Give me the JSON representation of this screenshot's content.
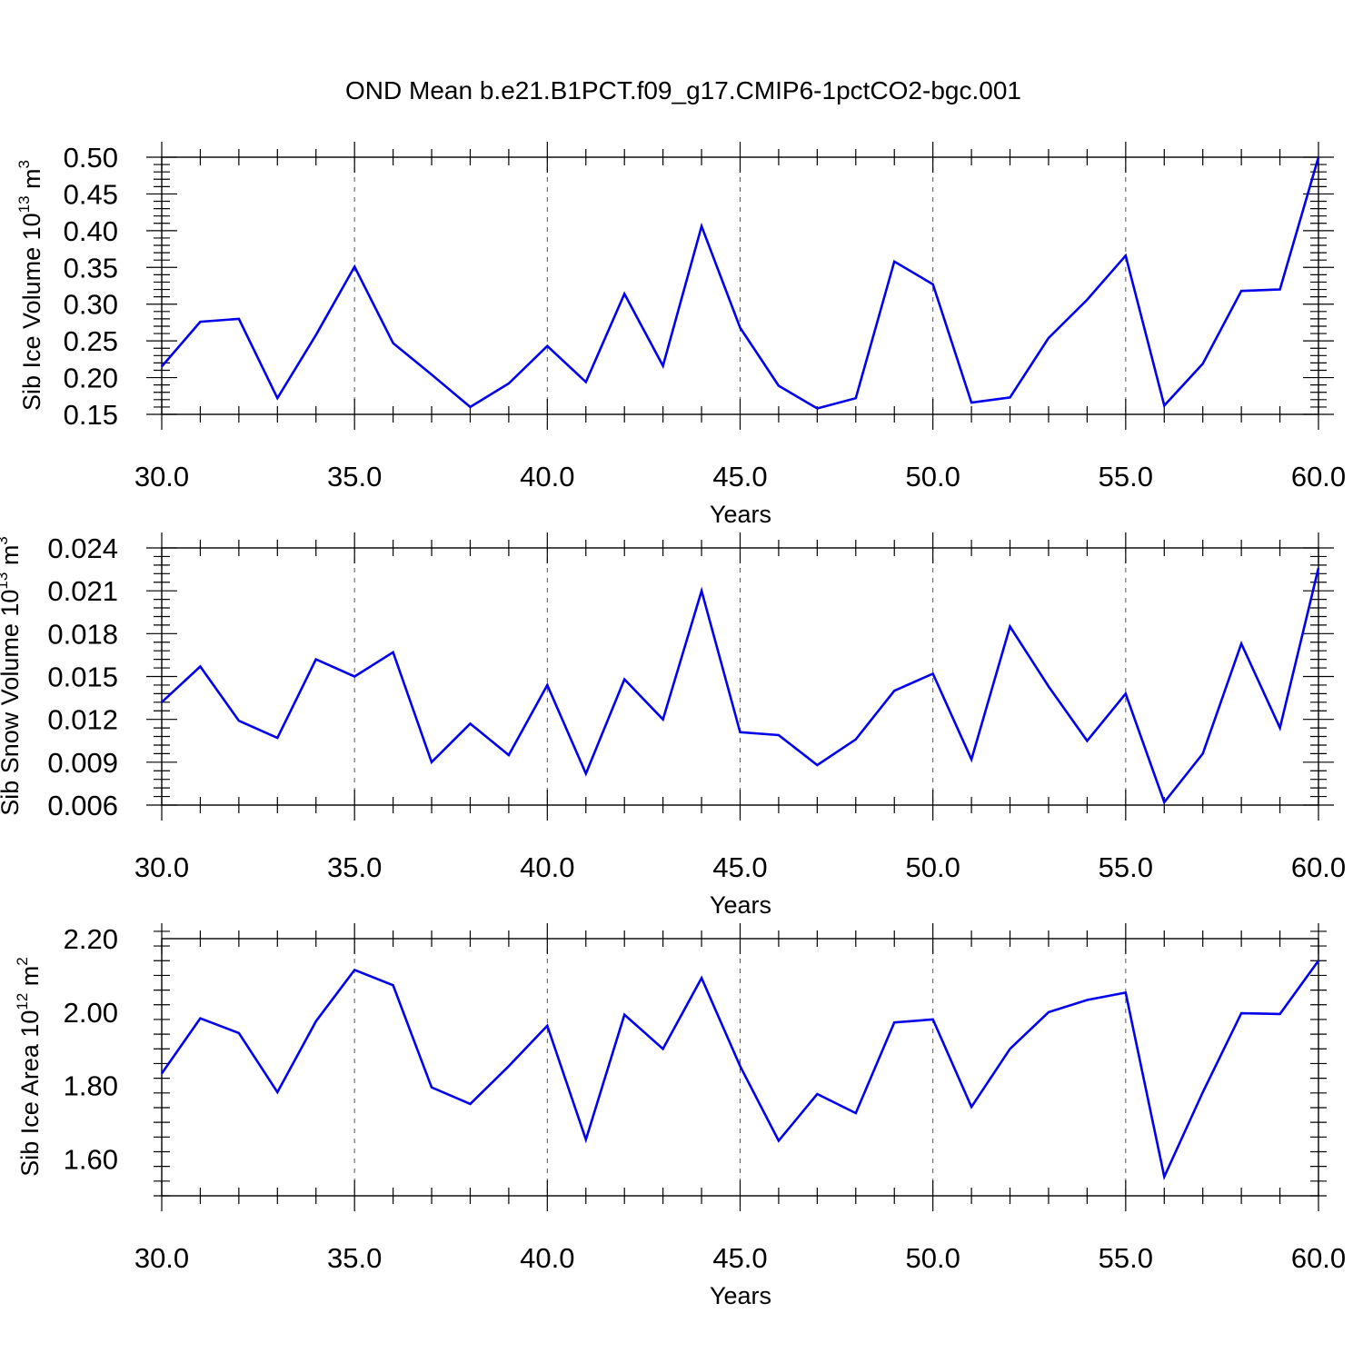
{
  "figure_title": "OND Mean b.e21.B1PCT.f09_g17.CMIP6-1pctCO2-bgc.001",
  "colors": {
    "series": "#0000ee",
    "grid": "#555555",
    "frame": "#000000"
  },
  "chart_data": [
    {
      "type": "line",
      "title": "",
      "xlabel": "Years",
      "ylabel": {
        "main": "Sib Ice Volume 10",
        "exp": "13",
        "unit": " m",
        "unit_exp": "3"
      },
      "xlim": [
        30,
        60
      ],
      "ylim": [
        0.15,
        0.5
      ],
      "xticks": [
        "30.0",
        "35.0",
        "40.0",
        "45.0",
        "50.0",
        "55.0",
        "60.0"
      ],
      "xtick_values": [
        30,
        35,
        40,
        45,
        50,
        55,
        60
      ],
      "yticks": [
        "0.15",
        "0.20",
        "0.25",
        "0.30",
        "0.35",
        "0.40",
        "0.45",
        "0.50"
      ],
      "ytick_values": [
        0.15,
        0.2,
        0.25,
        0.3,
        0.35,
        0.4,
        0.45,
        0.5
      ],
      "x_minor_step": 1,
      "y_minor_step": 0.01,
      "grid": "x-dashed",
      "series": [
        {
          "x": [
            30,
            31,
            32,
            33,
            34,
            35,
            36,
            37,
            38,
            39,
            40,
            41,
            42,
            43,
            44,
            45,
            46,
            47,
            48,
            49,
            50,
            51,
            52,
            53,
            54,
            55,
            56,
            57,
            58,
            59,
            60
          ],
          "values": [
            0.215,
            0.276,
            0.28,
            0.172,
            0.258,
            0.351,
            0.247,
            0.204,
            0.16,
            0.192,
            0.243,
            0.194,
            0.314,
            0.216,
            0.406,
            0.268,
            0.189,
            0.158,
            0.172,
            0.358,
            0.327,
            0.166,
            0.173,
            0.254,
            0.306,
            0.366,
            0.162,
            0.219,
            0.318,
            0.32,
            0.5
          ]
        }
      ]
    },
    {
      "type": "line",
      "title": "",
      "xlabel": "Years",
      "ylabel": {
        "main": "Sib Snow Volume 10",
        "exp": "13",
        "unit": " m",
        "unit_exp": "3"
      },
      "xlim": [
        30,
        60
      ],
      "ylim": [
        0.006,
        0.024
      ],
      "xticks": [
        "30.0",
        "35.0",
        "40.0",
        "45.0",
        "50.0",
        "55.0",
        "60.0"
      ],
      "xtick_values": [
        30,
        35,
        40,
        45,
        50,
        55,
        60
      ],
      "yticks": [
        "0.006",
        "0.009",
        "0.012",
        "0.015",
        "0.018",
        "0.021",
        "0.024"
      ],
      "ytick_values": [
        0.006,
        0.009,
        0.012,
        0.015,
        0.018,
        0.021,
        0.024
      ],
      "x_minor_step": 1,
      "y_minor_step": 0.0006,
      "grid": "x-dashed",
      "series": [
        {
          "x": [
            30,
            31,
            32,
            33,
            34,
            35,
            36,
            37,
            38,
            39,
            40,
            41,
            42,
            43,
            44,
            45,
            46,
            47,
            48,
            49,
            50,
            51,
            52,
            53,
            54,
            55,
            56,
            57,
            58,
            59,
            60
          ],
          "values": [
            0.0132,
            0.0157,
            0.0119,
            0.0107,
            0.0162,
            0.015,
            0.0167,
            0.009,
            0.0117,
            0.0095,
            0.0144,
            0.0082,
            0.0148,
            0.012,
            0.021,
            0.0111,
            0.0109,
            0.0088,
            0.0106,
            0.014,
            0.0152,
            0.0092,
            0.0185,
            0.0143,
            0.0105,
            0.0138,
            0.0062,
            0.0096,
            0.0173,
            0.0114,
            0.0226
          ]
        }
      ]
    },
    {
      "type": "line",
      "title": "",
      "xlabel": "Years",
      "ylabel": {
        "main": "Sib Ice Area 10",
        "exp": "12",
        "unit": " m",
        "unit_exp": "2"
      },
      "xlim": [
        30,
        60
      ],
      "ylim": [
        1.5,
        2.2
      ],
      "xticks": [
        "30.0",
        "35.0",
        "40.0",
        "45.0",
        "50.0",
        "55.0",
        "60.0"
      ],
      "xtick_values": [
        30,
        35,
        40,
        45,
        50,
        55,
        60
      ],
      "yticks": [
        "1.60",
        "1.80",
        "2.00",
        "2.20"
      ],
      "ytick_values": [
        1.6,
        1.8,
        2.0,
        2.2
      ],
      "x_minor_step": 1,
      "y_minor_step": 0.04,
      "grid": "x-dashed",
      "series": [
        {
          "x": [
            30,
            31,
            32,
            33,
            34,
            35,
            36,
            37,
            38,
            39,
            40,
            41,
            42,
            43,
            44,
            45,
            46,
            47,
            48,
            49,
            50,
            51,
            52,
            53,
            54,
            55,
            56,
            57,
            58,
            59,
            60
          ],
          "values": [
            1.833,
            1.983,
            1.943,
            1.782,
            1.975,
            2.115,
            2.073,
            1.795,
            1.75,
            1.853,
            1.963,
            1.653,
            1.993,
            1.9,
            2.093,
            1.853,
            1.65,
            1.777,
            1.725,
            1.972,
            1.98,
            1.742,
            1.9,
            2.0,
            2.033,
            2.053,
            1.552,
            1.782,
            1.997,
            1.995,
            2.14
          ]
        }
      ]
    }
  ]
}
